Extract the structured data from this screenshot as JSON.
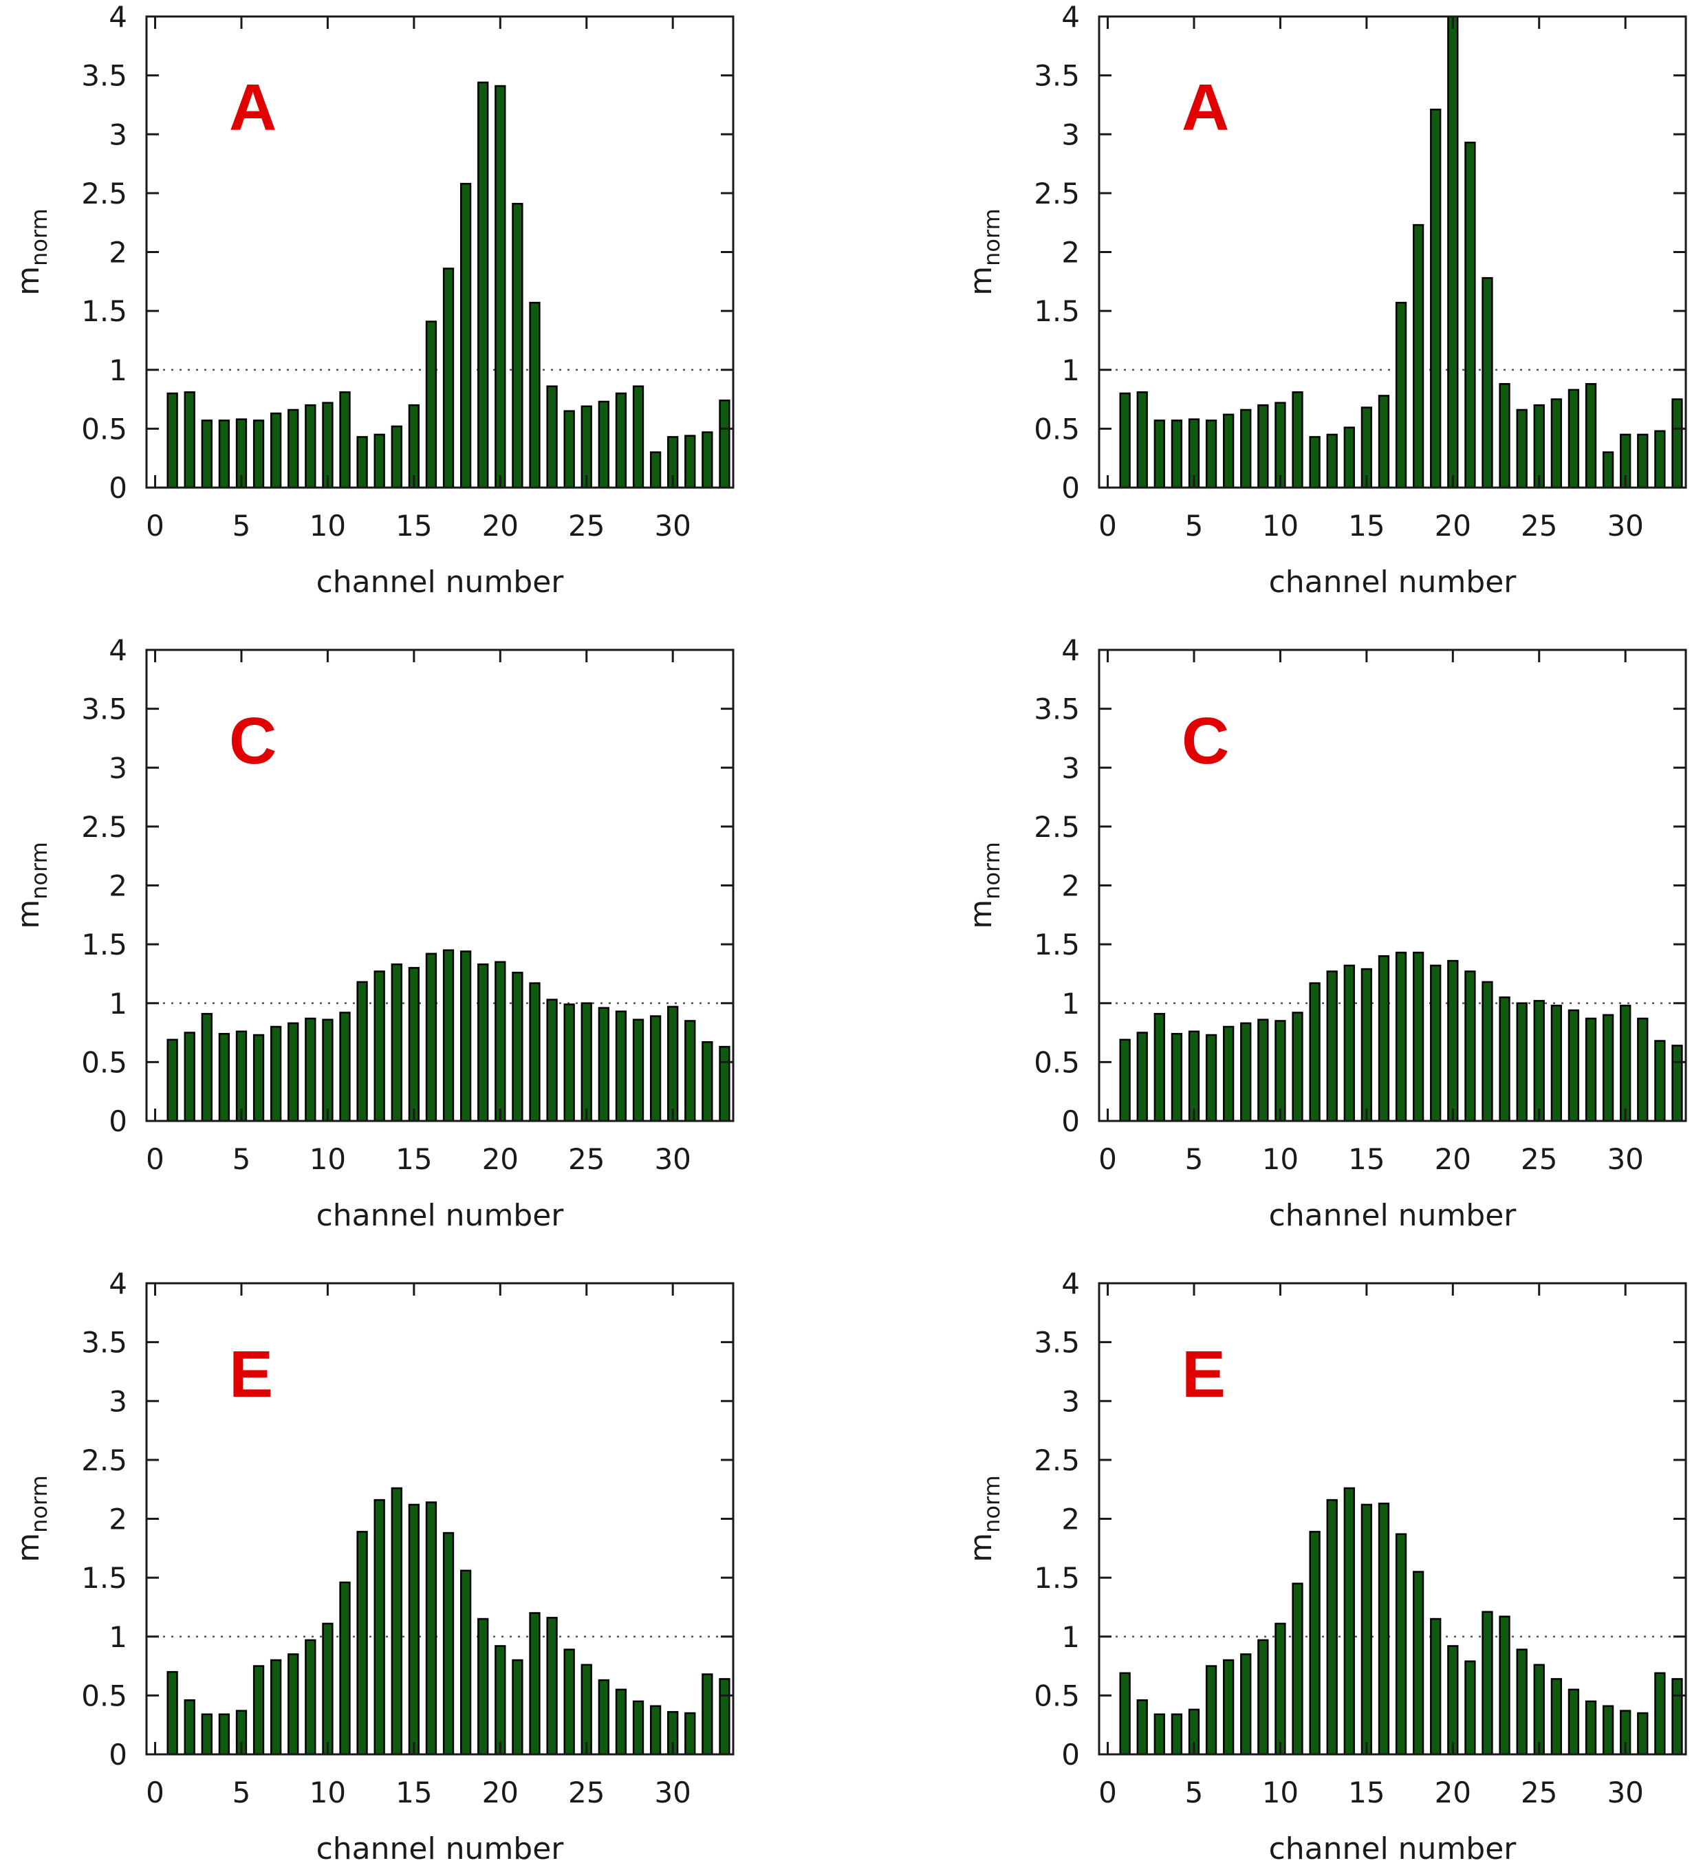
{
  "figure": {
    "bar_color": "#0f5a0f",
    "letter_color": "#e00000"
  },
  "chart_data": [
    {
      "type": "bar",
      "panel_label": "A",
      "xlabel": "channel number",
      "ylabel_main": "m",
      "ylabel_sub": "norm",
      "xlim": [
        -0.5,
        33.5
      ],
      "ylim": [
        0,
        4
      ],
      "xticks": [
        0,
        5,
        10,
        15,
        20,
        25,
        30
      ],
      "yticks": [
        0,
        0.5,
        1,
        1.5,
        2,
        2.5,
        3,
        3.5,
        4
      ],
      "reference_line": 1,
      "x": [
        1,
        2,
        3,
        4,
        5,
        6,
        7,
        8,
        9,
        10,
        11,
        12,
        13,
        14,
        15,
        16,
        17,
        18,
        19,
        20,
        21,
        22,
        23,
        24,
        25,
        26,
        27,
        28,
        29,
        30,
        31,
        32,
        33
      ],
      "values": [
        0.8,
        0.81,
        0.57,
        0.57,
        0.58,
        0.57,
        0.63,
        0.66,
        0.7,
        0.72,
        0.81,
        0.43,
        0.45,
        0.52,
        0.7,
        1.41,
        1.86,
        2.58,
        3.44,
        3.41,
        2.41,
        1.57,
        0.86,
        0.65,
        0.69,
        0.73,
        0.8,
        0.86,
        0.3,
        0.43,
        0.44,
        0.47,
        0.74
      ]
    },
    {
      "type": "bar",
      "panel_label": "A",
      "xlabel": "channel number",
      "ylabel_main": "m",
      "ylabel_sub": "norm",
      "xlim": [
        -0.5,
        33.5
      ],
      "ylim": [
        0,
        4
      ],
      "xticks": [
        0,
        5,
        10,
        15,
        20,
        25,
        30
      ],
      "yticks": [
        0,
        0.5,
        1,
        1.5,
        2,
        2.5,
        3,
        3.5,
        4
      ],
      "reference_line": 1,
      "x": [
        1,
        2,
        3,
        4,
        5,
        6,
        7,
        8,
        9,
        10,
        11,
        12,
        13,
        14,
        15,
        16,
        17,
        18,
        19,
        20,
        21,
        22,
        23,
        24,
        25,
        26,
        27,
        28,
        29,
        30,
        31,
        32,
        33
      ],
      "values": [
        0.8,
        0.81,
        0.57,
        0.57,
        0.58,
        0.57,
        0.62,
        0.66,
        0.7,
        0.72,
        0.81,
        0.43,
        0.45,
        0.51,
        0.68,
        0.78,
        1.57,
        2.23,
        3.21,
        4.0,
        2.93,
        1.78,
        0.88,
        0.66,
        0.7,
        0.75,
        0.83,
        0.88,
        0.3,
        0.45,
        0.45,
        0.48,
        0.75
      ]
    },
    {
      "type": "bar",
      "panel_label": "C",
      "xlabel": "channel number",
      "ylabel_main": "m",
      "ylabel_sub": "norm",
      "xlim": [
        -0.5,
        33.5
      ],
      "ylim": [
        0,
        4
      ],
      "xticks": [
        0,
        5,
        10,
        15,
        20,
        25,
        30
      ],
      "yticks": [
        0,
        0.5,
        1,
        1.5,
        2,
        2.5,
        3,
        3.5,
        4
      ],
      "reference_line": 1,
      "x": [
        1,
        2,
        3,
        4,
        5,
        6,
        7,
        8,
        9,
        10,
        11,
        12,
        13,
        14,
        15,
        16,
        17,
        18,
        19,
        20,
        21,
        22,
        23,
        24,
        25,
        26,
        27,
        28,
        29,
        30,
        31,
        32,
        33
      ],
      "values": [
        0.69,
        0.75,
        0.91,
        0.74,
        0.76,
        0.73,
        0.8,
        0.83,
        0.87,
        0.86,
        0.92,
        1.18,
        1.27,
        1.33,
        1.3,
        1.42,
        1.45,
        1.44,
        1.33,
        1.35,
        1.26,
        1.17,
        1.03,
        0.99,
        1.0,
        0.96,
        0.93,
        0.86,
        0.89,
        0.97,
        0.85,
        0.67,
        0.63
      ]
    },
    {
      "type": "bar",
      "panel_label": "C",
      "xlabel": "channel number",
      "ylabel_main": "m",
      "ylabel_sub": "norm",
      "xlim": [
        -0.5,
        33.5
      ],
      "ylim": [
        0,
        4
      ],
      "xticks": [
        0,
        5,
        10,
        15,
        20,
        25,
        30
      ],
      "yticks": [
        0,
        0.5,
        1,
        1.5,
        2,
        2.5,
        3,
        3.5,
        4
      ],
      "reference_line": 1,
      "x": [
        1,
        2,
        3,
        4,
        5,
        6,
        7,
        8,
        9,
        10,
        11,
        12,
        13,
        14,
        15,
        16,
        17,
        18,
        19,
        20,
        21,
        22,
        23,
        24,
        25,
        26,
        27,
        28,
        29,
        30,
        31,
        32,
        33
      ],
      "values": [
        0.69,
        0.75,
        0.91,
        0.74,
        0.76,
        0.73,
        0.8,
        0.83,
        0.86,
        0.85,
        0.92,
        1.17,
        1.27,
        1.32,
        1.29,
        1.4,
        1.43,
        1.43,
        1.32,
        1.36,
        1.27,
        1.18,
        1.05,
        1.0,
        1.02,
        0.98,
        0.94,
        0.87,
        0.9,
        0.98,
        0.87,
        0.68,
        0.64
      ]
    },
    {
      "type": "bar",
      "panel_label": "E",
      "xlabel": "channel number",
      "ylabel_main": "m",
      "ylabel_sub": "norm",
      "xlim": [
        -0.5,
        33.5
      ],
      "ylim": [
        0,
        4
      ],
      "xticks": [
        0,
        5,
        10,
        15,
        20,
        25,
        30
      ],
      "yticks": [
        0,
        0.5,
        1,
        1.5,
        2,
        2.5,
        3,
        3.5,
        4
      ],
      "reference_line": 1,
      "x": [
        1,
        2,
        3,
        4,
        5,
        6,
        7,
        8,
        9,
        10,
        11,
        12,
        13,
        14,
        15,
        16,
        17,
        18,
        19,
        20,
        21,
        22,
        23,
        24,
        25,
        26,
        27,
        28,
        29,
        30,
        31,
        32,
        33
      ],
      "values": [
        0.7,
        0.46,
        0.34,
        0.34,
        0.37,
        0.75,
        0.8,
        0.85,
        0.97,
        1.11,
        1.46,
        1.89,
        2.16,
        2.26,
        2.12,
        2.14,
        1.88,
        1.56,
        1.15,
        0.92,
        0.8,
        1.2,
        1.16,
        0.89,
        0.76,
        0.63,
        0.55,
        0.45,
        0.41,
        0.36,
        0.35,
        0.68,
        0.64
      ]
    },
    {
      "type": "bar",
      "panel_label": "E",
      "xlabel": "channel number",
      "ylabel_main": "m",
      "ylabel_sub": "norm",
      "xlim": [
        -0.5,
        33.5
      ],
      "ylim": [
        0,
        4
      ],
      "xticks": [
        0,
        5,
        10,
        15,
        20,
        25,
        30
      ],
      "yticks": [
        0,
        0.5,
        1,
        1.5,
        2,
        2.5,
        3,
        3.5,
        4
      ],
      "reference_line": 1,
      "x": [
        1,
        2,
        3,
        4,
        5,
        6,
        7,
        8,
        9,
        10,
        11,
        12,
        13,
        14,
        15,
        16,
        17,
        18,
        19,
        20,
        21,
        22,
        23,
        24,
        25,
        26,
        27,
        28,
        29,
        30,
        31,
        32,
        33
      ],
      "values": [
        0.69,
        0.46,
        0.34,
        0.34,
        0.38,
        0.75,
        0.8,
        0.85,
        0.97,
        1.11,
        1.45,
        1.89,
        2.16,
        2.26,
        2.12,
        2.13,
        1.87,
        1.55,
        1.15,
        0.92,
        0.79,
        1.21,
        1.17,
        0.89,
        0.76,
        0.64,
        0.55,
        0.45,
        0.41,
        0.37,
        0.35,
        0.69,
        0.64
      ]
    }
  ]
}
